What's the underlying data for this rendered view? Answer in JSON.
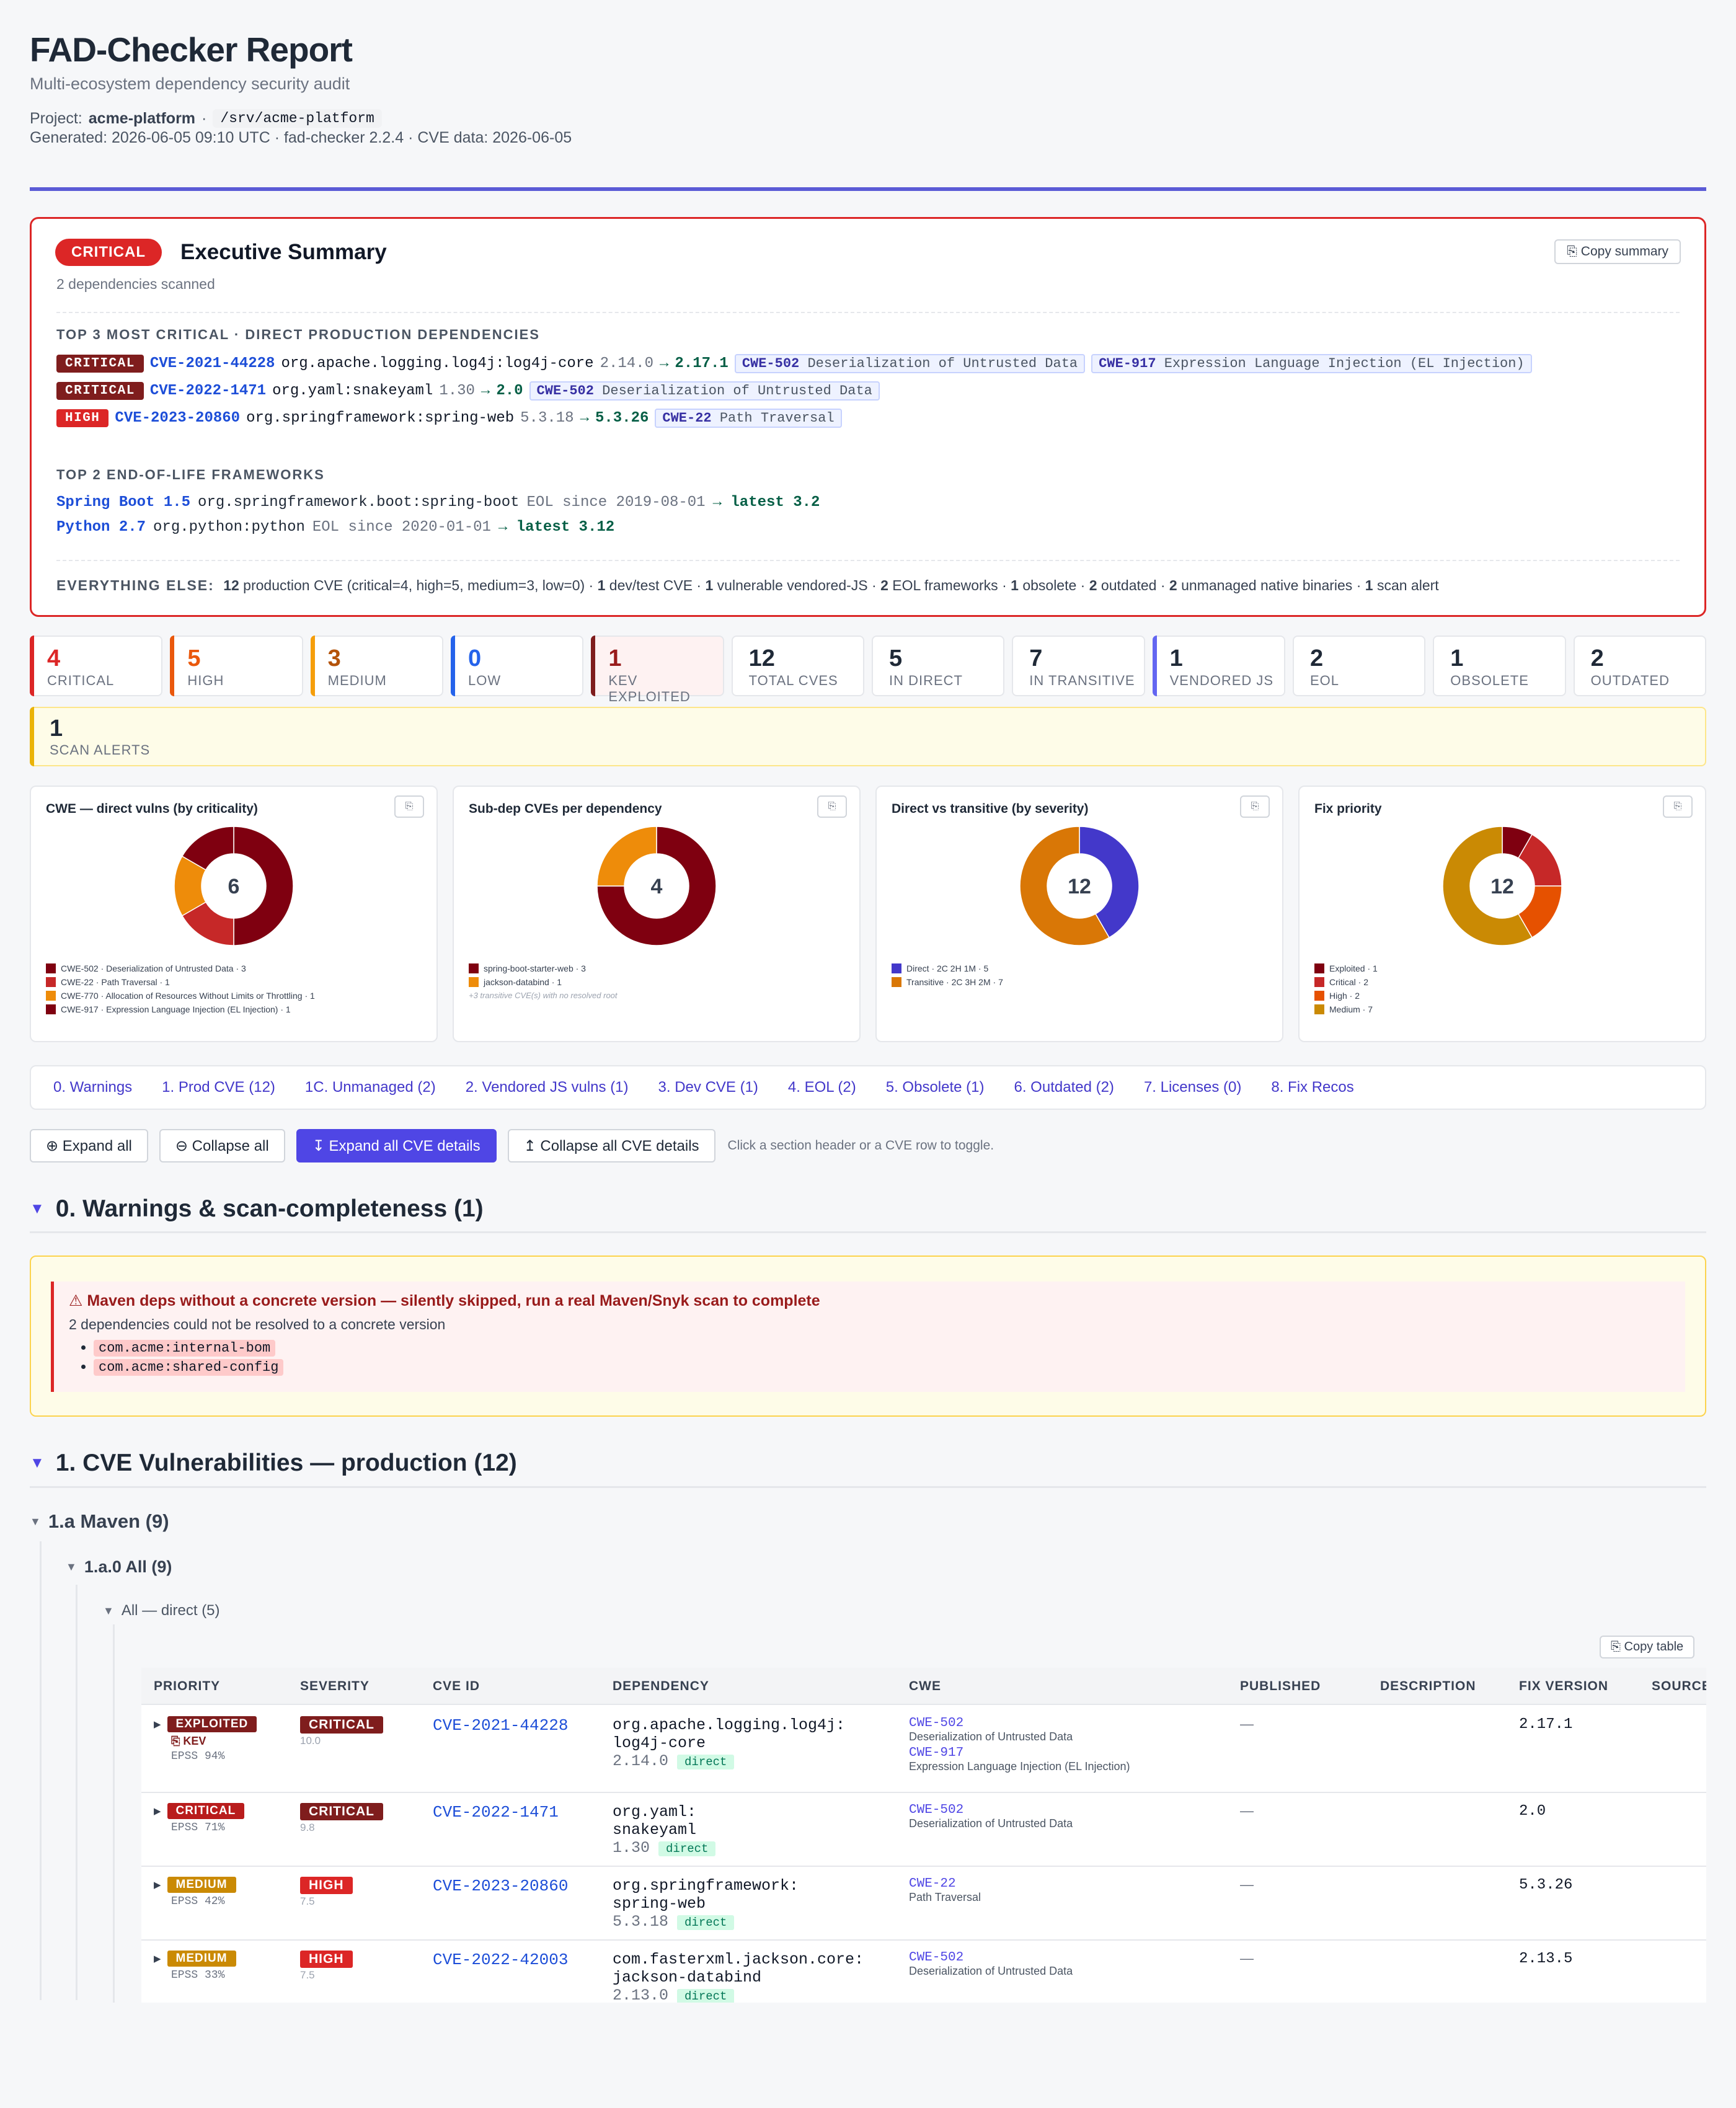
{
  "header": {
    "title": "FAD-Checker Report",
    "subtitle": "Multi-ecosystem dependency security audit",
    "project_label": "Project:",
    "project_name": "acme-platform",
    "project_sep": "·",
    "project_path": "/srv/acme-platform",
    "generated": "Generated: 2026-06-05 09:10 UTC · fad-checker 2.2.4 · CVE data: 2026-06-05"
  },
  "executive": {
    "badge": "CRITICAL",
    "title": "Executive Summary",
    "copy_label": "⎘ Copy summary",
    "scanned": "2 dependencies scanned",
    "top_critical_heading": "TOP 3 MOST CRITICAL · DIRECT PRODUCTION DEPENDENCIES",
    "top_critical": [
      {
        "severity": "CRITICAL",
        "cve": "CVE-2021-44228",
        "pkg": "org.apache.logging.log4j:log4j-core",
        "version": "2.14.0",
        "arrow": "→",
        "fix": "2.17.1",
        "cwes": [
          {
            "id": "CWE-502",
            "name": "Deserialization of Untrusted Data"
          },
          {
            "id": "CWE-917",
            "name": "Expression Language Injection (EL Injection)"
          }
        ]
      },
      {
        "severity": "CRITICAL",
        "cve": "CVE-2022-1471",
        "pkg": "org.yaml:snakeyaml",
        "version": "1.30",
        "arrow": "→",
        "fix": "2.0",
        "cwes": [
          {
            "id": "CWE-502",
            "name": "Deserialization of Untrusted Data"
          }
        ]
      },
      {
        "severity": "HIGH",
        "cve": "CVE-2023-20860",
        "pkg": "org.springframework:spring-web",
        "version": "5.3.18",
        "arrow": "→",
        "fix": "5.3.26",
        "cwes": [
          {
            "id": "CWE-22",
            "name": "Path Traversal"
          }
        ]
      }
    ],
    "eol_heading": "TOP 2 END-OF-LIFE FRAMEWORKS",
    "eol": [
      {
        "framework": "Spring Boot 1.5",
        "pkg": "org.springframework.boot:spring-boot",
        "since": "EOL since 2019-08-01",
        "latest": "→ latest 3.2"
      },
      {
        "framework": "Python 2.7",
        "pkg": "org.python:python",
        "since": "EOL since 2020-01-01",
        "latest": "→ latest 3.12"
      }
    ],
    "everything_label": "EVERYTHING ELSE:",
    "everything_parts": [
      {
        "n": "12",
        "t": "production CVE (critical=4, high=5, medium=3, low=0)"
      },
      {
        "n": "1",
        "t": "dev/test CVE"
      },
      {
        "n": "1",
        "t": "vulnerable vendored-JS"
      },
      {
        "n": "2",
        "t": "EOL frameworks"
      },
      {
        "n": "1",
        "t": "obsolete"
      },
      {
        "n": "2",
        "t": "outdated"
      },
      {
        "n": "2",
        "t": "unmanaged native binaries"
      },
      {
        "n": "1",
        "t": "scan alert"
      }
    ]
  },
  "stats": [
    {
      "num": "4",
      "label": "CRITICAL",
      "color": "#dc2626",
      "bar": "#dc2626",
      "bg": "#ffffff"
    },
    {
      "num": "5",
      "label": "HIGH",
      "color": "#ea580c",
      "bar": "#ea580c",
      "bg": "#ffffff"
    },
    {
      "num": "3",
      "label": "MEDIUM",
      "color": "#b45309",
      "bar": "#f59e0b",
      "bg": "#ffffff"
    },
    {
      "num": "0",
      "label": "LOW",
      "color": "#2563eb",
      "bar": "#2563eb",
      "bg": "#ffffff"
    },
    {
      "num": "1",
      "label": "KEV EXPLOITED",
      "color": "#991b1b",
      "bar": "#7f1d1d",
      "bg": "#fef2f2"
    },
    {
      "num": "12",
      "label": "TOTAL CVES",
      "color": "#1f2937",
      "bar": "",
      "bg": "#ffffff"
    },
    {
      "num": "5",
      "label": "IN DIRECT",
      "color": "#1f2937",
      "bar": "",
      "bg": "#ffffff"
    },
    {
      "num": "7",
      "label": "IN TRANSITIVE",
      "color": "#1f2937",
      "bar": "",
      "bg": "#ffffff"
    },
    {
      "num": "1",
      "label": "VENDORED JS",
      "color": "#1f2937",
      "bar": "#6366f1",
      "bg": "#ffffff"
    },
    {
      "num": "2",
      "label": "EOL",
      "color": "#1f2937",
      "bar": "",
      "bg": "#ffffff"
    },
    {
      "num": "1",
      "label": "OBSOLETE",
      "color": "#1f2937",
      "bar": "",
      "bg": "#ffffff"
    },
    {
      "num": "2",
      "label": "OUTDATED",
      "color": "#1f2937",
      "bar": "",
      "bg": "#ffffff"
    }
  ],
  "alerts": {
    "num": "1",
    "label": "SCAN ALERTS"
  },
  "chart_data": [
    {
      "type": "pie",
      "title": "CWE — direct vulns (by criticality)",
      "center": "6",
      "slices": [
        {
          "label": "CWE-502 · Deserialization of Untrusted Data · 3",
          "value": 3,
          "color": "#7f0010"
        },
        {
          "label": "CWE-22 · Path Traversal · 1",
          "value": 1,
          "color": "#c62828"
        },
        {
          "label": "CWE-770 · Allocation of Resources Without Limits or Throttling · 1",
          "value": 1,
          "color": "#ee8c0a"
        },
        {
          "label": "CWE-917 · Expression Language Injection (EL Injection) · 1",
          "value": 1,
          "color": "#7f0010"
        }
      ],
      "note": ""
    },
    {
      "type": "pie",
      "title": "Sub-dep CVEs per dependency",
      "center": "4",
      "slices": [
        {
          "label": "spring-boot-starter-web · 3",
          "value": 3,
          "color": "#7f0010"
        },
        {
          "label": "jackson-databind · 1",
          "value": 1,
          "color": "#ee8c0a"
        }
      ],
      "note": "+3 transitive CVE(s) with no resolved root"
    },
    {
      "type": "pie",
      "title": "Direct vs transitive (by severity)",
      "center": "12",
      "slices": [
        {
          "label": "Direct · 2C 2H 1M · 5",
          "value": 5,
          "color": "#4338ca"
        },
        {
          "label": "Transitive · 2C 3H 2M · 7",
          "value": 7,
          "color": "#d97706"
        }
      ],
      "note": ""
    },
    {
      "type": "pie",
      "title": "Fix priority",
      "center": "12",
      "slices": [
        {
          "label": "Exploited · 1",
          "value": 1,
          "color": "#7f0010"
        },
        {
          "label": "Critical · 2",
          "value": 2,
          "color": "#c62828"
        },
        {
          "label": "High · 2",
          "value": 2,
          "color": "#e65100"
        },
        {
          "label": "Medium · 7",
          "value": 7,
          "color": "#ca8a04"
        }
      ],
      "note": ""
    }
  ],
  "chart_icon": "⎘",
  "nav": [
    "0. Warnings",
    "1. Prod CVE (12)",
    "1C. Unmanaged (2)",
    "2. Vendored JS vulns (1)",
    "3. Dev CVE (1)",
    "4. EOL (2)",
    "5. Obsolete (1)",
    "6. Outdated (2)",
    "7. Licenses (0)",
    "8. Fix Recos"
  ],
  "toolbar": {
    "expand_all": "⊕ Expand all",
    "collapse_all": "⊖ Collapse all",
    "expand_cve": "↧ Expand all CVE details",
    "collapse_cve": "↥ Collapse all CVE details",
    "hint": "Click a section header or a CVE row to toggle."
  },
  "section0": {
    "title": "0. Warnings & scan-completeness (1)",
    "warn_title": "⚠ Maven deps without a concrete version — silently skipped, run a real Maven/Snyk scan to complete",
    "warn_desc": "2 dependencies could not be resolved to a concrete version",
    "items": [
      "com.acme:internal-bom",
      "com.acme:shared-config"
    ]
  },
  "section1": {
    "title": "1. CVE Vulnerabilities — production (12)",
    "maven": "1.a Maven (9)",
    "all": "1.a.0 All (9)",
    "direct": "All — direct (5)",
    "copy_table": "⎘ Copy table",
    "columns": [
      "PRIORITY",
      "SEVERITY",
      "CVE ID",
      "DEPENDENCY",
      "CWE",
      "PUBLISHED",
      "DESCRIPTION",
      "FIX VERSION",
      "SOURCE"
    ],
    "rows": [
      {
        "priority": "EXPLOITED",
        "prio_class": "prio-exploited",
        "kev": "⎘ KEV",
        "epss": "EPSS 94%",
        "severity": "CRITICAL",
        "sev_class": "critical",
        "score": "10.0",
        "cve": "CVE-2021-44228",
        "dep1": "org.apache.logging.log4j:",
        "dep2": "log4j-core",
        "ver": "2.14.0",
        "direct": "direct",
        "cwes": [
          {
            "id": "CWE-502",
            "name": "Deserialization of Untrusted Data"
          },
          {
            "id": "CWE-917",
            "name": "Expression Language Injection (EL Injection)"
          }
        ],
        "published": "—",
        "fix": "2.17.1"
      },
      {
        "priority": "CRITICAL",
        "prio_class": "prio-critical",
        "kev": "",
        "epss": "EPSS 71%",
        "severity": "CRITICAL",
        "sev_class": "critical",
        "score": "9.8",
        "cve": "CVE-2022-1471",
        "dep1": "org.yaml:",
        "dep2": "snakeyaml",
        "ver": "1.30",
        "direct": "direct",
        "cwes": [
          {
            "id": "CWE-502",
            "name": "Deserialization of Untrusted Data"
          }
        ],
        "published": "—",
        "fix": "2.0"
      },
      {
        "priority": "MEDIUM",
        "prio_class": "prio-medium",
        "kev": "",
        "epss": "EPSS 42%",
        "severity": "HIGH",
        "sev_class": "high",
        "score": "7.5",
        "cve": "CVE-2023-20860",
        "dep1": "org.springframework:",
        "dep2": "spring-web",
        "ver": "5.3.18",
        "direct": "direct",
        "cwes": [
          {
            "id": "CWE-22",
            "name": "Path Traversal"
          }
        ],
        "published": "—",
        "fix": "5.3.26"
      },
      {
        "priority": "MEDIUM",
        "prio_class": "prio-medium",
        "kev": "",
        "epss": "EPSS 33%",
        "severity": "HIGH",
        "sev_class": "high",
        "score": "7.5",
        "cve": "CVE-2022-42003",
        "dep1": "com.fasterxml.jackson.core:",
        "dep2": "jackson-databind",
        "ver": "2.13.0",
        "direct": "direct",
        "cwes": [
          {
            "id": "CWE-502",
            "name": "Deserialization of Untrusted Data"
          }
        ],
        "published": "—",
        "fix": "2.13.5"
      }
    ]
  }
}
